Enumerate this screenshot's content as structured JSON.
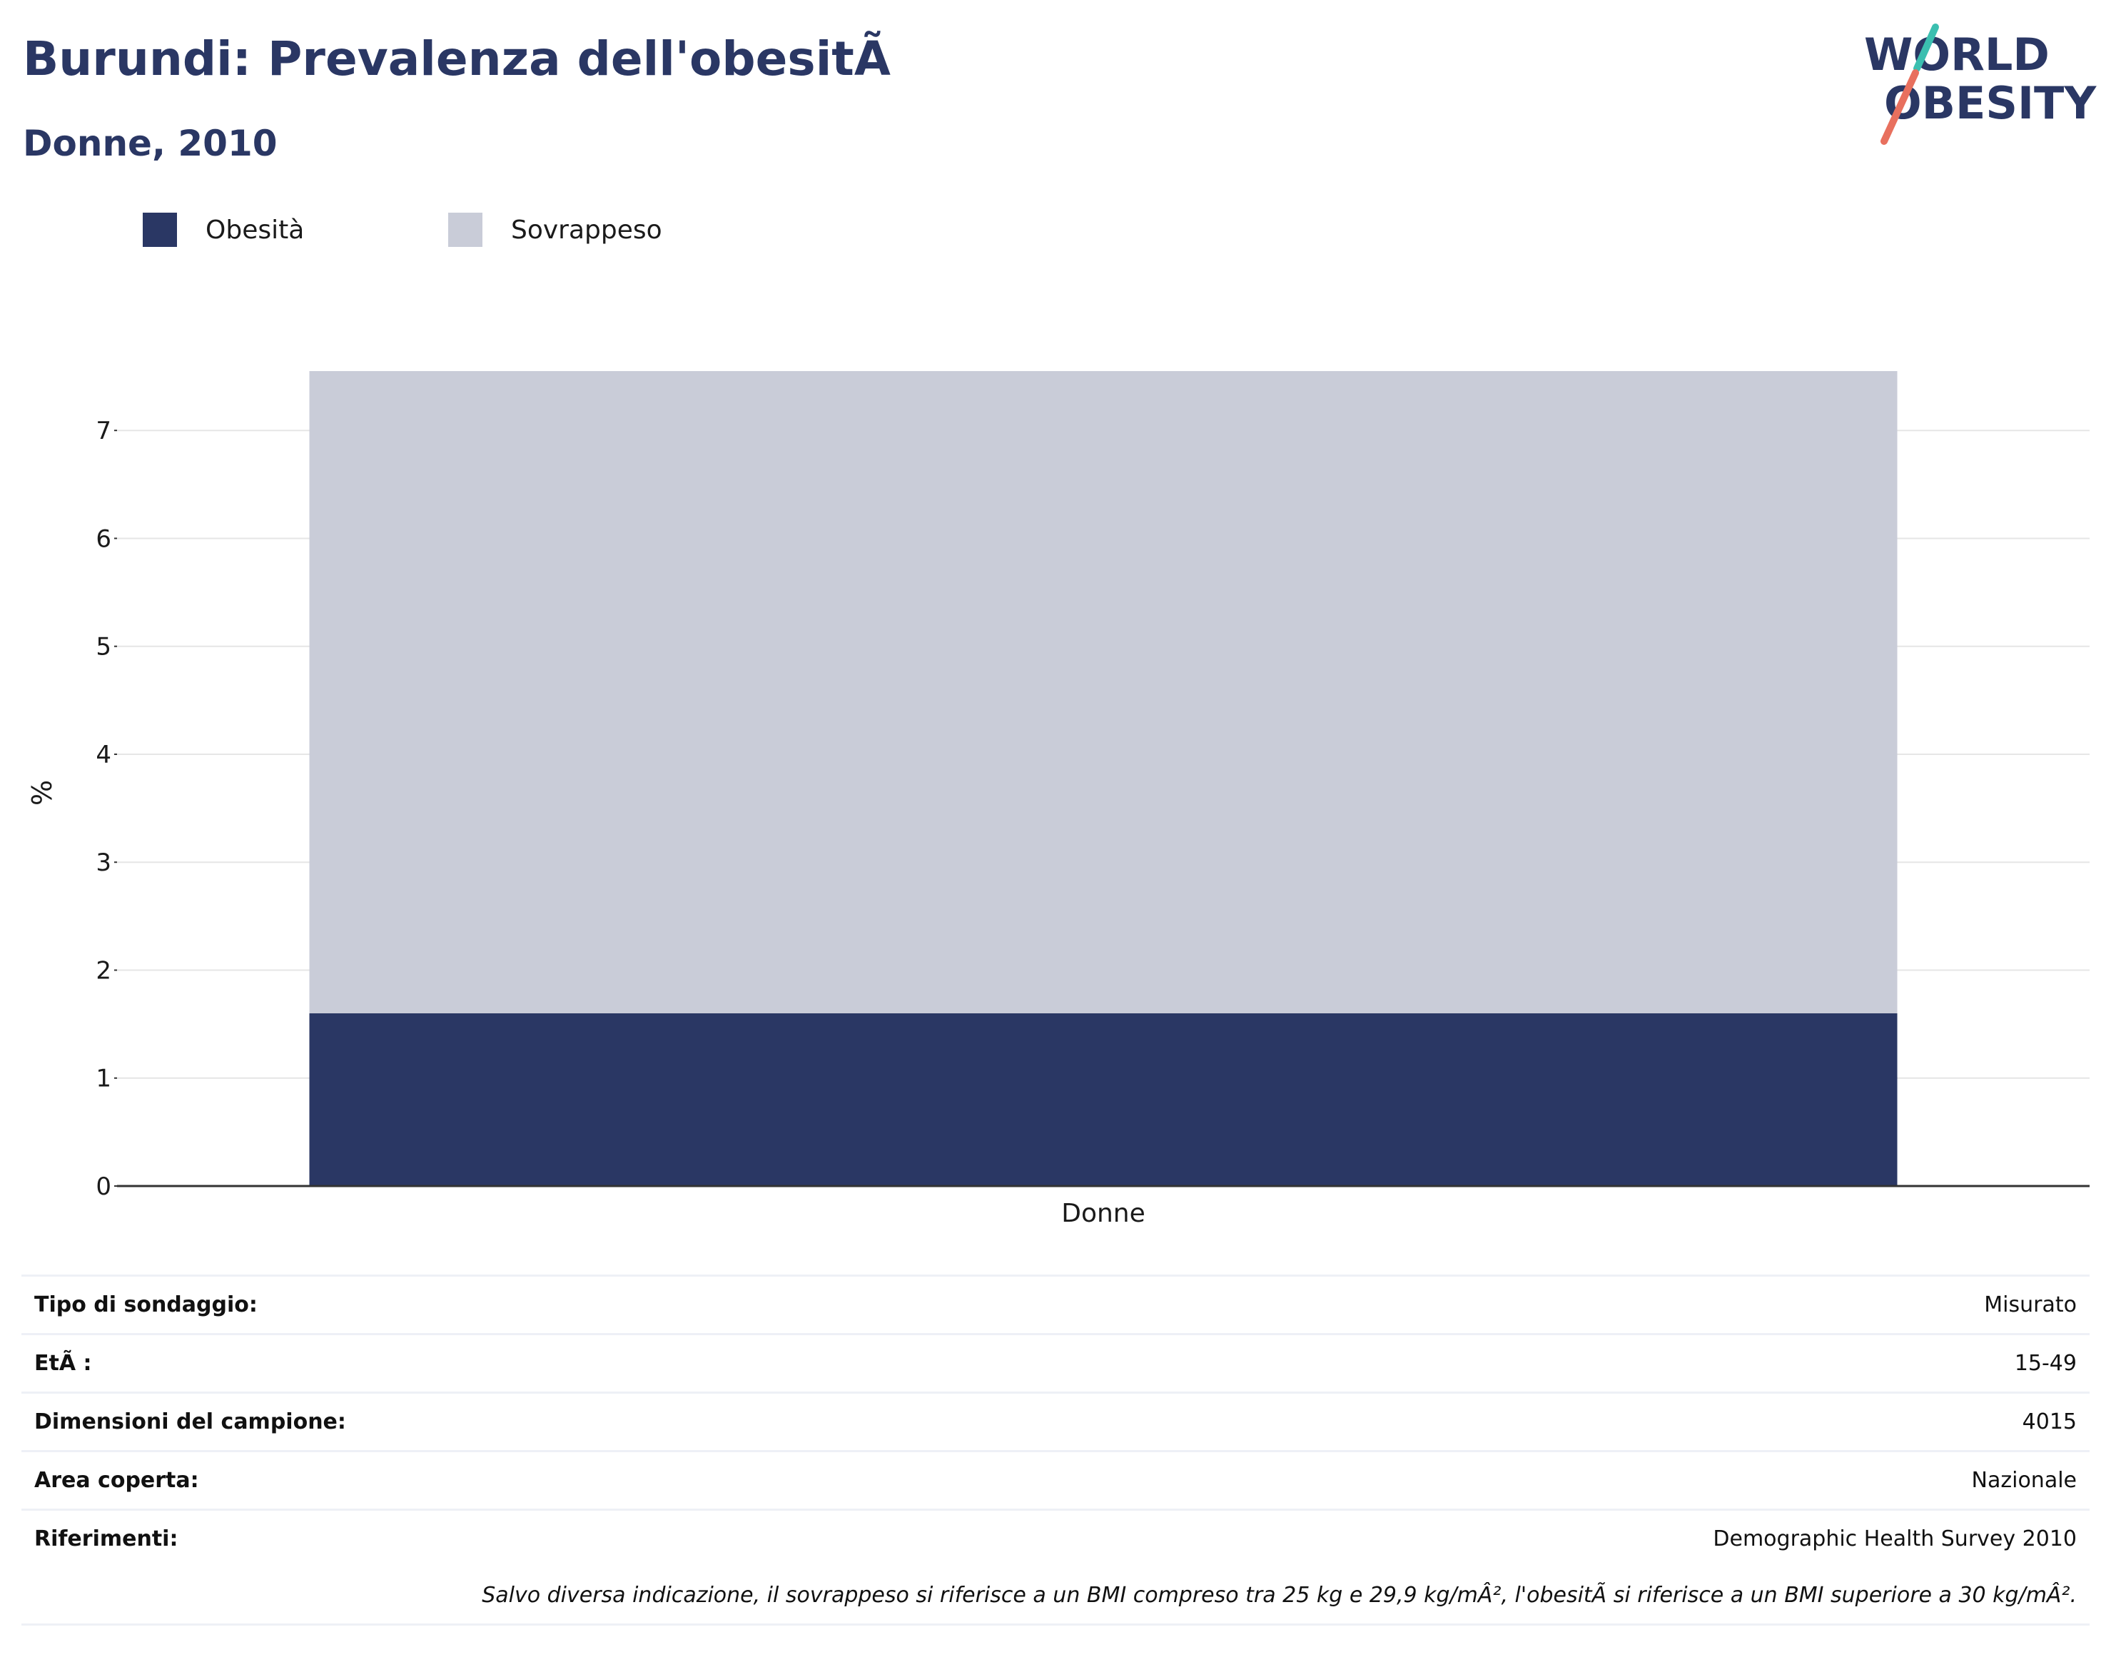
{
  "header": {
    "title": "Burundi: Prevalenza dell'obesitÃ",
    "subtitle": "Donne, 2010"
  },
  "logo": {
    "line1": "WORLD",
    "line2": "OBESITY",
    "colors": {
      "text": "#2a3764",
      "accent_teal": "#3bbfb0",
      "accent_coral": "#e8705e"
    }
  },
  "legend": [
    {
      "label": "Obesità",
      "color": "#2a3764"
    },
    {
      "label": "Sovrappeso",
      "color": "#c9ccd8"
    }
  ],
  "chart_data": {
    "type": "bar",
    "stacked": true,
    "categories": [
      "Donne"
    ],
    "series": [
      {
        "name": "Obesità",
        "values": [
          1.6
        ],
        "color": "#2a3764"
      },
      {
        "name": "Sovrappeso",
        "values": [
          5.95
        ],
        "color": "#c9ccd8"
      }
    ],
    "title": "Burundi: Prevalenza dell'obesitÃ",
    "subtitle": "Donne, 2010",
    "xlabel": "",
    "ylabel": "%",
    "ylim": [
      0,
      7.55
    ],
    "yticks": [
      0,
      1,
      2,
      3,
      4,
      5,
      6,
      7
    ],
    "grid": true,
    "legend_position": "top-left"
  },
  "info": {
    "rows": [
      {
        "label": "Tipo di sondaggio:",
        "value": "Misurato"
      },
      {
        "label": "EtÃ :",
        "value": "15-49"
      },
      {
        "label": "Dimensioni del campione:",
        "value": "4015"
      },
      {
        "label": "Area coperta:",
        "value": "Nazionale"
      },
      {
        "label": "Riferimenti:",
        "value": "Demographic Health Survey 2010"
      }
    ],
    "note": "Salvo diversa indicazione, il sovrappeso si riferisce a un BMI compreso tra 25 kg e 29,9 kg/mÂ², l'obesitÃ  si riferisce a un BMI superiore a 30 kg/mÂ²."
  }
}
